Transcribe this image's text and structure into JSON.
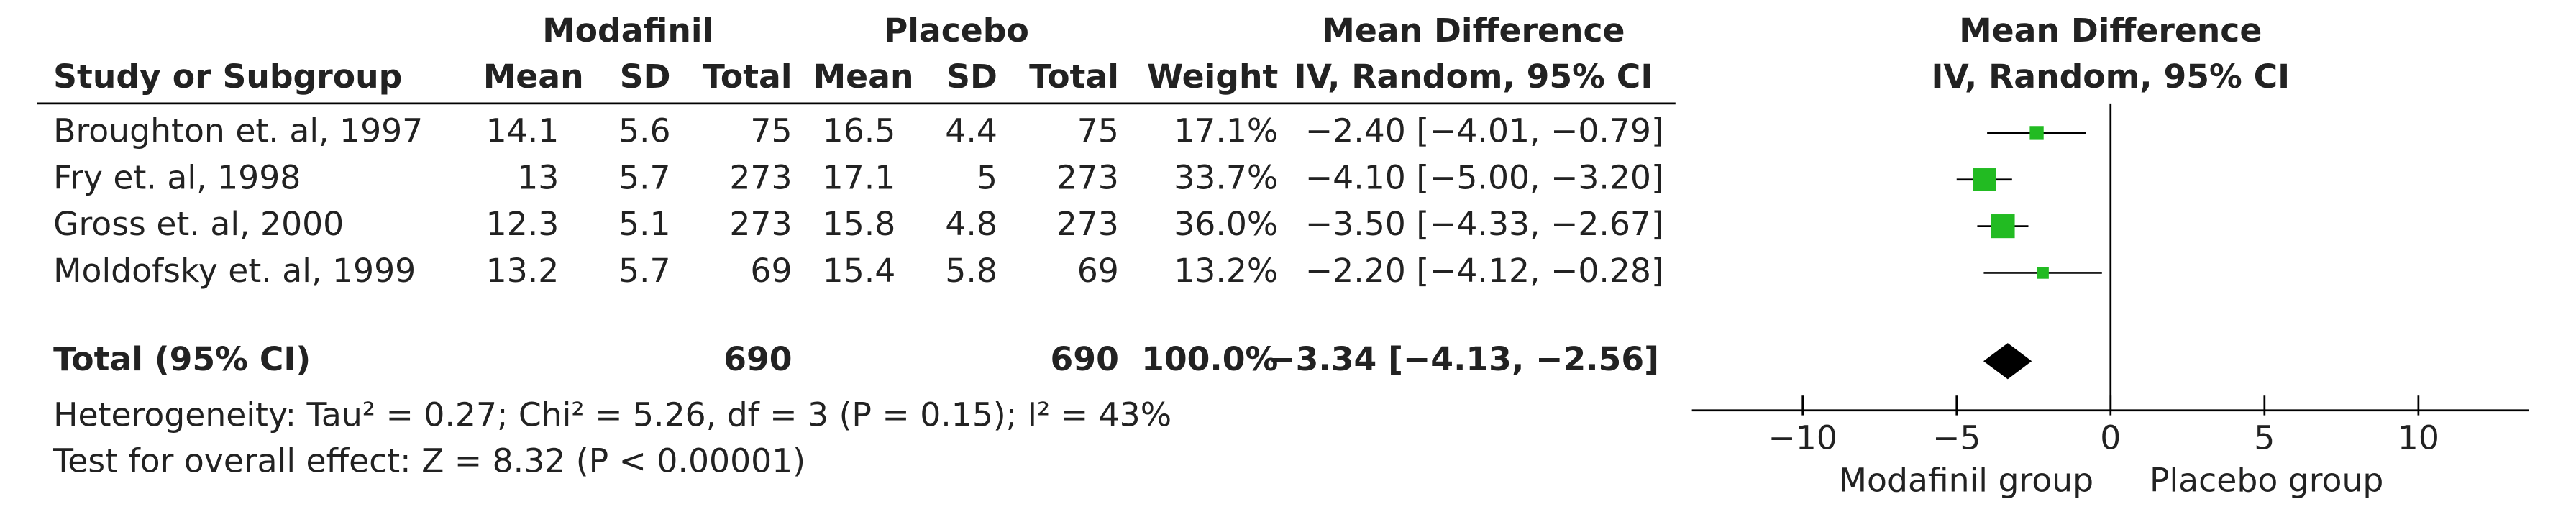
{
  "chart_data": {
    "type": "forest",
    "group_headers": [
      "Modafinil",
      "Placebo"
    ],
    "effect_header": "Mean Difference",
    "method": "IV, Random, 95% CI",
    "columns": [
      "Study or Subgroup",
      "Mean",
      "SD",
      "Total",
      "Mean",
      "SD",
      "Total",
      "Weight"
    ],
    "studies": [
      {
        "name": "Broughton et. al, 1997",
        "mod_mean": 14.1,
        "mod_sd": 5.6,
        "mod_total": 75,
        "pla_mean": 16.5,
        "pla_sd": 4.4,
        "pla_total": 75,
        "weight": 17.1,
        "weight_label": "17.1%",
        "md": -2.4,
        "ci_low": -4.01,
        "ci_high": -0.79,
        "md_label": "−2.40 [−4.01, −0.79]"
      },
      {
        "name": "Fry et. al, 1998",
        "mod_mean": 13,
        "mod_sd": 5.7,
        "mod_total": 273,
        "pla_mean": 17.1,
        "pla_sd": 5,
        "pla_total": 273,
        "weight": 33.7,
        "weight_label": "33.7%",
        "md": -4.1,
        "ci_low": -5.0,
        "ci_high": -3.2,
        "md_label": "−4.10 [−5.00, −3.20]"
      },
      {
        "name": "Gross et. al, 2000",
        "mod_mean": 12.3,
        "mod_sd": 5.1,
        "mod_total": 273,
        "pla_mean": 15.8,
        "pla_sd": 4.8,
        "pla_total": 273,
        "weight": 36.0,
        "weight_label": "36.0%",
        "md": -3.5,
        "ci_low": -4.33,
        "ci_high": -2.67,
        "md_label": "−3.50 [−4.33, −2.67]"
      },
      {
        "name": "Moldofsky et. al, 1999",
        "mod_mean": 13.2,
        "mod_sd": 5.7,
        "mod_total": 69,
        "pla_mean": 15.4,
        "pla_sd": 5.8,
        "pla_total": 69,
        "weight": 13.2,
        "weight_label": "13.2%",
        "md": -2.2,
        "ci_low": -4.12,
        "ci_high": -0.28,
        "md_label": "−2.20 [−4.12, −0.28]"
      }
    ],
    "total": {
      "name": "Total (95% CI)",
      "mod_total": 690,
      "pla_total": 690,
      "weight": 100.0,
      "weight_label": "100.0%",
      "md": -3.34,
      "ci_low": -4.13,
      "ci_high": -2.56,
      "md_label": "−3.34 [−4.13, −2.56]"
    },
    "heterogeneity": "Heterogeneity: Tau² = 0.27; Chi² = 5.26, df = 3 (P = 0.15); I² = 43%",
    "overall_effect": "Test for overall effect: Z = 8.32 (P < 0.00001)",
    "xlim": [
      -13.6,
      13.6
    ],
    "xticks": [
      {
        "value": -10,
        "label": "−10"
      },
      {
        "value": -5,
        "label": "−5"
      },
      0,
      5,
      10
    ],
    "favours_left": "Modafinil group",
    "favours_right": "Placebo group",
    "study_color": "#22bb22",
    "total_color": "#000000"
  }
}
